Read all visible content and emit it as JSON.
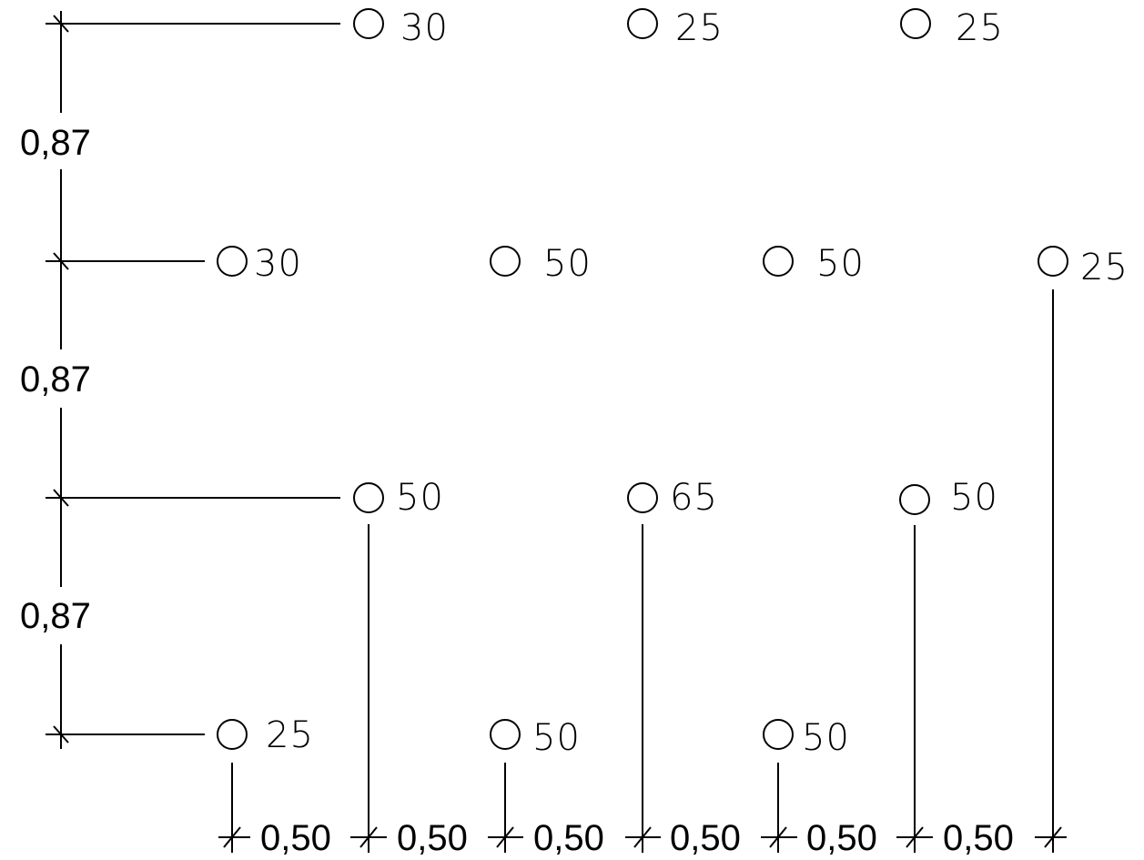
{
  "colors": {
    "line": "#000000",
    "background": "#ffffff"
  },
  "points": [
    {
      "id": "p-r1-c1",
      "row": 1,
      "col": 1,
      "label": "30"
    },
    {
      "id": "p-r1-c2",
      "row": 1,
      "col": 2,
      "label": "25"
    },
    {
      "id": "p-r1-c3",
      "row": 1,
      "col": 3,
      "label": "25"
    },
    {
      "id": "p-r2-c1",
      "row": 2,
      "col": 1,
      "label": "30"
    },
    {
      "id": "p-r2-c2",
      "row": 2,
      "col": 2,
      "label": "50"
    },
    {
      "id": "p-r2-c3",
      "row": 2,
      "col": 3,
      "label": "50"
    },
    {
      "id": "p-r2-c4",
      "row": 2,
      "col": 4,
      "label": "25"
    },
    {
      "id": "p-r3-c1",
      "row": 3,
      "col": 1,
      "label": "50"
    },
    {
      "id": "p-r3-c2",
      "row": 3,
      "col": 2,
      "label": "65"
    },
    {
      "id": "p-r3-c3",
      "row": 3,
      "col": 3,
      "label": "50"
    },
    {
      "id": "p-r4-c1",
      "row": 4,
      "col": 1,
      "label": "25"
    },
    {
      "id": "p-r4-c2",
      "row": 4,
      "col": 2,
      "label": "50"
    },
    {
      "id": "p-r4-c3",
      "row": 4,
      "col": 3,
      "label": "50"
    }
  ],
  "vertical_dimensions": [
    "0,87",
    "0,87",
    "0,87"
  ],
  "horizontal_dimensions": [
    "0,50",
    "0,50",
    "0,50",
    "0,50",
    "0,50",
    "0,50"
  ]
}
